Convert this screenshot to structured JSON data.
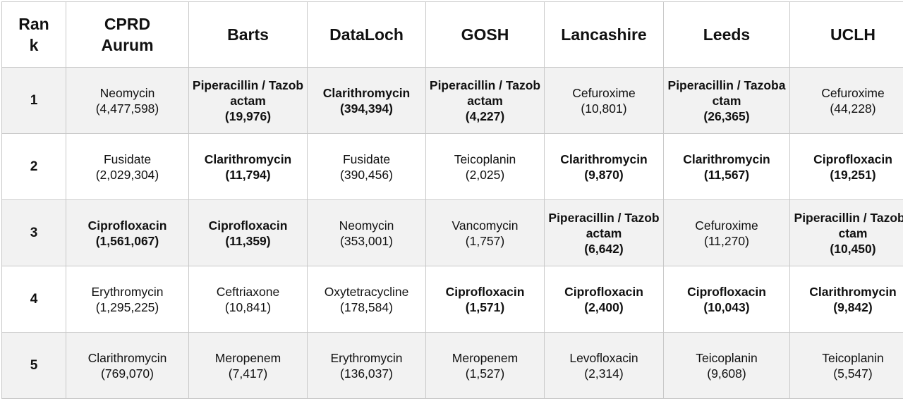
{
  "header": {
    "rank": "Ran k",
    "sites": [
      "CPRD Aurum",
      "Barts",
      "DataLoch",
      "GOSH",
      "Lancashire",
      "Leeds",
      "UCLH"
    ]
  },
  "rows": [
    {
      "rank": "1",
      "cells": [
        {
          "name": "Neomycin",
          "count": "(4,477,598)",
          "bold": false
        },
        {
          "name": "Piperacillin / Tazobactam",
          "count": "(19,976)",
          "bold": true
        },
        {
          "name": "Clarithromycin",
          "count": "(394,394)",
          "bold": true
        },
        {
          "name": "Piperacillin / Tazobactam",
          "count": "(4,227)",
          "bold": true
        },
        {
          "name": "Cefuroxime",
          "count": "(10,801)",
          "bold": false
        },
        {
          "name": "Piperacillin / Tazobactam",
          "count": "(26,365)",
          "bold": true
        },
        {
          "name": "Cefuroxime",
          "count": "(44,228)",
          "bold": false
        }
      ]
    },
    {
      "rank": "2",
      "cells": [
        {
          "name": "Fusidate",
          "count": "(2,029,304)",
          "bold": false
        },
        {
          "name": "Clarithromycin",
          "count": "(11,794)",
          "bold": true
        },
        {
          "name": "Fusidate",
          "count": "(390,456)",
          "bold": false
        },
        {
          "name": "Teicoplanin",
          "count": "(2,025)",
          "bold": false
        },
        {
          "name": "Clarithromycin",
          "count": "(9,870)",
          "bold": true
        },
        {
          "name": "Clarithromycin",
          "count": "(11,567)",
          "bold": true
        },
        {
          "name": "Ciprofloxacin",
          "count": "(19,251)",
          "bold": true
        }
      ]
    },
    {
      "rank": "3",
      "cells": [
        {
          "name": "Ciprofloxacin",
          "count": "(1,561,067)",
          "bold": true
        },
        {
          "name": "Ciprofloxacin",
          "count": "(11,359)",
          "bold": true
        },
        {
          "name": "Neomycin",
          "count": "(353,001)",
          "bold": false
        },
        {
          "name": "Vancomycin",
          "count": "(1,757)",
          "bold": false
        },
        {
          "name": "Piperacillin / Tazobactam",
          "count": "(6,642)",
          "bold": true
        },
        {
          "name": "Cefuroxime",
          "count": "(11,270)",
          "bold": false
        },
        {
          "name": "Piperacillin / Tazobactam",
          "count": "(10,450)",
          "bold": true
        }
      ]
    },
    {
      "rank": "4",
      "cells": [
        {
          "name": "Erythromycin",
          "count": "(1,295,225)",
          "bold": false
        },
        {
          "name": "Ceftriaxone",
          "count": "(10,841)",
          "bold": false
        },
        {
          "name": "Oxytetracycline",
          "count": "(178,584)",
          "bold": false
        },
        {
          "name": "Ciprofloxacin",
          "count": "(1,571)",
          "bold": true
        },
        {
          "name": "Ciprofloxacin",
          "count": "(2,400)",
          "bold": true
        },
        {
          "name": "Ciprofloxacin",
          "count": "(10,043)",
          "bold": true
        },
        {
          "name": "Clarithromycin",
          "count": "(9,842)",
          "bold": true
        }
      ]
    },
    {
      "rank": "5",
      "cells": [
        {
          "name": "Clarithromycin",
          "count": "(769,070)",
          "bold": false
        },
        {
          "name": "Meropenem",
          "count": "(7,417)",
          "bold": false
        },
        {
          "name": "Erythromycin",
          "count": "(136,037)",
          "bold": false
        },
        {
          "name": "Meropenem",
          "count": "(1,527)",
          "bold": false
        },
        {
          "name": "Levofloxacin",
          "count": "(2,314)",
          "bold": false
        },
        {
          "name": "Teicoplanin",
          "count": "(9,608)",
          "bold": false
        },
        {
          "name": "Teicoplanin",
          "count": "(5,547)",
          "bold": false
        }
      ]
    }
  ]
}
